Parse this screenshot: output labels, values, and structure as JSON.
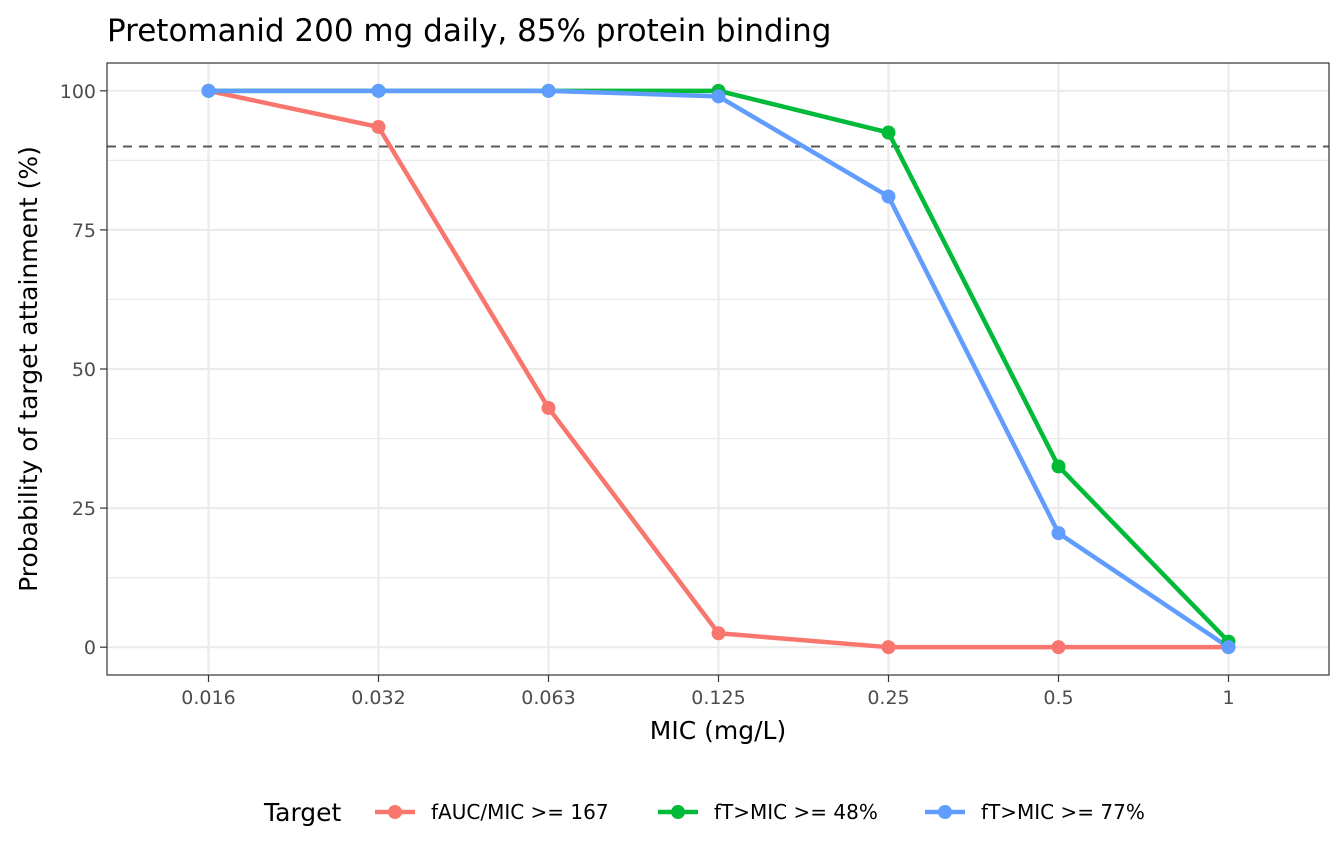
{
  "chart_data": {
    "type": "line",
    "title": "Pretomanid 200 mg daily, 85% protein binding",
    "xlabel": "MIC (mg/L)",
    "ylabel": "Probability of target attainment (%)",
    "categories": [
      "0.016",
      "0.032",
      "0.063",
      "0.125",
      "0.25",
      "0.5",
      "1"
    ],
    "ylim": [
      -5,
      105
    ],
    "yticks": [
      0,
      25,
      50,
      75,
      100
    ],
    "reference_line": {
      "y": 90,
      "style": "dashed",
      "color": "#595959"
    },
    "grid": true,
    "legend": {
      "title": "Target",
      "position": "bottom"
    },
    "series": [
      {
        "name": "fAUC/MIC >= 167",
        "color": "#F8766D",
        "values": [
          100,
          93.5,
          43,
          2.5,
          0,
          0,
          0
        ]
      },
      {
        "name": "fT>MIC >= 48%",
        "color": "#00BA38",
        "values": [
          100,
          100,
          100,
          100,
          92.5,
          32.5,
          1
        ]
      },
      {
        "name": "fT>MIC >= 77%",
        "color": "#619CFF",
        "values": [
          100,
          100,
          100,
          99,
          81,
          20.5,
          0
        ]
      }
    ]
  }
}
